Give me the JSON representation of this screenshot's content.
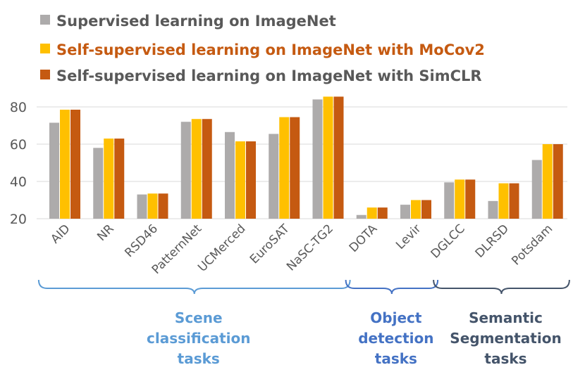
{
  "chart_data": {
    "type": "bar",
    "categories": [
      "AID",
      "NR",
      "RSD46",
      "PatternNet",
      "UCMerced",
      "EuroSAT",
      "NaSC-TG2",
      "DOTA",
      "Levir",
      "DGLCC",
      "DLRSD",
      "Potsdam"
    ],
    "series": [
      {
        "name": "Supervised learning on ImageNet",
        "color": "#ADABAB",
        "values": [
          71.5,
          58,
          33,
          72,
          66.5,
          65.5,
          84,
          22,
          27.5,
          39.5,
          29.5,
          51.5
        ]
      },
      {
        "name": "Self-supervised learning on ImageNet with MoCov2",
        "color": "#FFC000",
        "values": [
          78.5,
          63,
          33.5,
          73.5,
          61.5,
          74.5,
          85.5,
          26,
          30,
          41,
          39,
          60
        ]
      },
      {
        "name": "Self-supervised learning on ImageNet with SimCLR",
        "color": "#C55A11",
        "values": [
          78.5,
          63,
          33.5,
          73.5,
          61.5,
          74.5,
          85.5,
          26,
          30,
          41,
          39,
          60
        ]
      }
    ],
    "legend_text_colors": [
      "#595959",
      "#C55A11",
      "#595959"
    ],
    "ylim": [
      20,
      90
    ],
    "yticks": [
      20,
      40,
      60,
      80
    ],
    "grid": true,
    "legend_position": "top-left",
    "groups": [
      {
        "lines": [
          "Scene",
          "classification",
          "tasks"
        ],
        "color": "#5B9BD5",
        "start": 0,
        "end": 6
      },
      {
        "lines": [
          "Object",
          "detection",
          "tasks"
        ],
        "color": "#4472C4",
        "start": 7,
        "end": 8
      },
      {
        "lines": [
          "Semantic",
          "Segmentation",
          "tasks"
        ],
        "color": "#44546A",
        "start": 9,
        "end": 11
      }
    ]
  }
}
